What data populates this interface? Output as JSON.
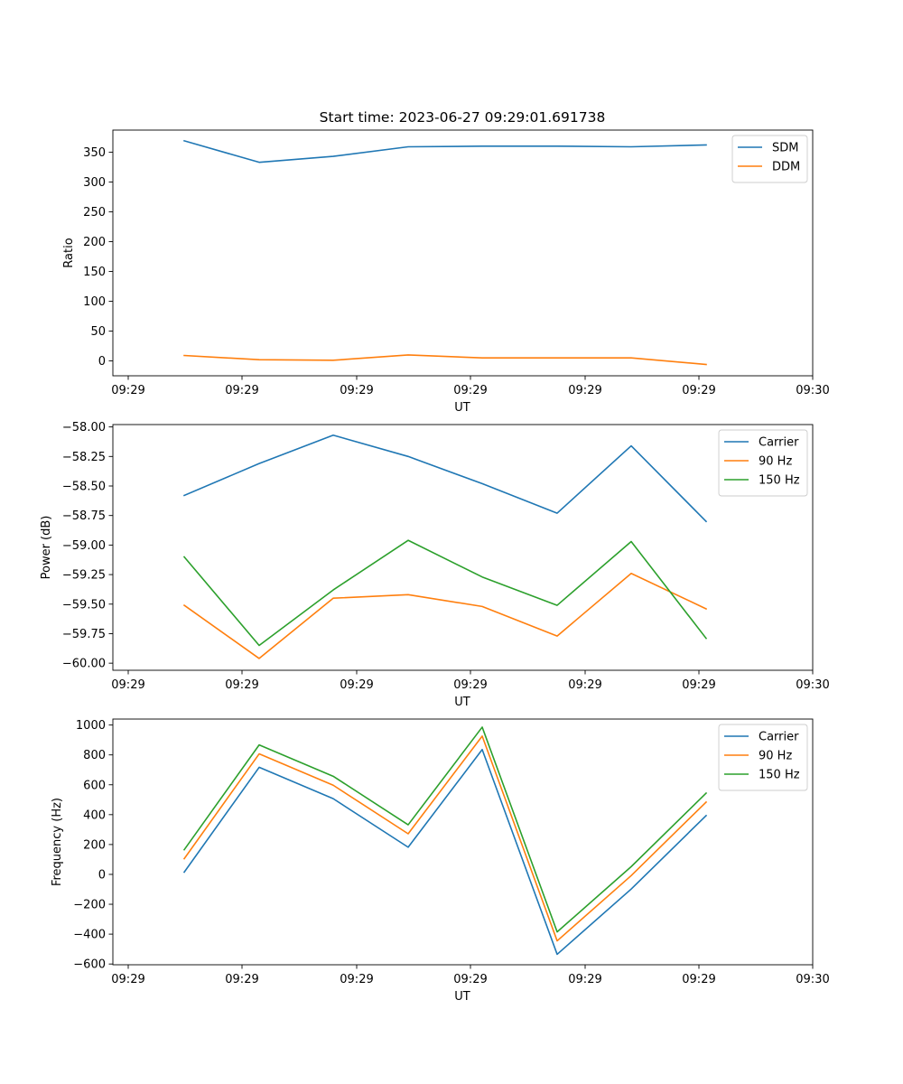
{
  "title": "Start time: 2023-06-27 09:29:01.691738",
  "chart_data": [
    {
      "type": "line",
      "xlabel": "UT",
      "ylabel": "Ratio",
      "x_tick_labels": [
        "09:29",
        "09:29",
        "09:29",
        "09:29",
        "09:29",
        "09:29",
        "09:30"
      ],
      "y_ticks": [
        0,
        50,
        100,
        150,
        200,
        250,
        300,
        350
      ],
      "y_tick_labels": [
        "0",
        "50",
        "100",
        "150",
        "200",
        "250",
        "300",
        "350"
      ],
      "ylim": [
        -25,
        387
      ],
      "grid": false,
      "legend_placement": "upper right",
      "series": [
        {
          "name": "SDM",
          "color": "#1f77b4",
          "values": [
            369,
            333,
            343,
            359,
            360,
            360,
            359,
            362
          ]
        },
        {
          "name": "DDM",
          "color": "#ff7f0e",
          "values": [
            9,
            2,
            1,
            10,
            5,
            5,
            5,
            -6
          ]
        }
      ]
    },
    {
      "type": "line",
      "xlabel": "UT",
      "ylabel": "Power (dB)",
      "x_tick_labels": [
        "09:29",
        "09:29",
        "09:29",
        "09:29",
        "09:29",
        "09:29",
        "09:30"
      ],
      "y_ticks": [
        -58.0,
        -58.25,
        -58.5,
        -58.75,
        -59.0,
        -59.25,
        -59.5,
        -59.75,
        -60.0
      ],
      "y_tick_labels": [
        "−58.00",
        "−58.25",
        "−58.50",
        "−58.75",
        "−59.00",
        "−59.25",
        "−59.50",
        "−59.75",
        "−60.00"
      ],
      "ylim": [
        -60.06,
        -57.98
      ],
      "grid": false,
      "legend_placement": "upper right",
      "series": [
        {
          "name": "Carrier",
          "color": "#1f77b4",
          "values": [
            -58.58,
            -58.31,
            -58.07,
            -58.25,
            -58.48,
            -58.73,
            -58.16,
            -58.8
          ]
        },
        {
          "name": "90 Hz",
          "color": "#ff7f0e",
          "values": [
            -59.51,
            -59.96,
            -59.45,
            -59.42,
            -59.52,
            -59.77,
            -59.24,
            -59.54
          ]
        },
        {
          "name": "150 Hz",
          "color": "#2ca02c",
          "values": [
            -59.1,
            -59.85,
            -59.38,
            -58.96,
            -59.27,
            -59.51,
            -58.97,
            -59.79
          ]
        }
      ]
    },
    {
      "type": "line",
      "xlabel": "UT",
      "ylabel": "Frequency (Hz)",
      "x_tick_labels": [
        "09:29",
        "09:29",
        "09:29",
        "09:29",
        "09:29",
        "09:29",
        "09:30"
      ],
      "y_ticks": [
        -600,
        -400,
        -200,
        0,
        200,
        400,
        600,
        800,
        1000
      ],
      "y_tick_labels": [
        "−600",
        "−400",
        "−200",
        "0",
        "200",
        "400",
        "600",
        "800",
        "1000"
      ],
      "ylim": [
        -605,
        1040
      ],
      "grid": false,
      "legend_placement": "upper right",
      "series": [
        {
          "name": "Carrier",
          "color": "#1f77b4",
          "values": [
            15,
            717,
            507,
            182,
            836,
            -535,
            -98,
            394
          ]
        },
        {
          "name": "90 Hz",
          "color": "#ff7f0e",
          "values": [
            105,
            807,
            597,
            272,
            926,
            -445,
            -8,
            484
          ]
        },
        {
          "name": "150 Hz",
          "color": "#2ca02c",
          "values": [
            165,
            867,
            657,
            332,
            986,
            -385,
            52,
            544
          ]
        }
      ]
    }
  ]
}
